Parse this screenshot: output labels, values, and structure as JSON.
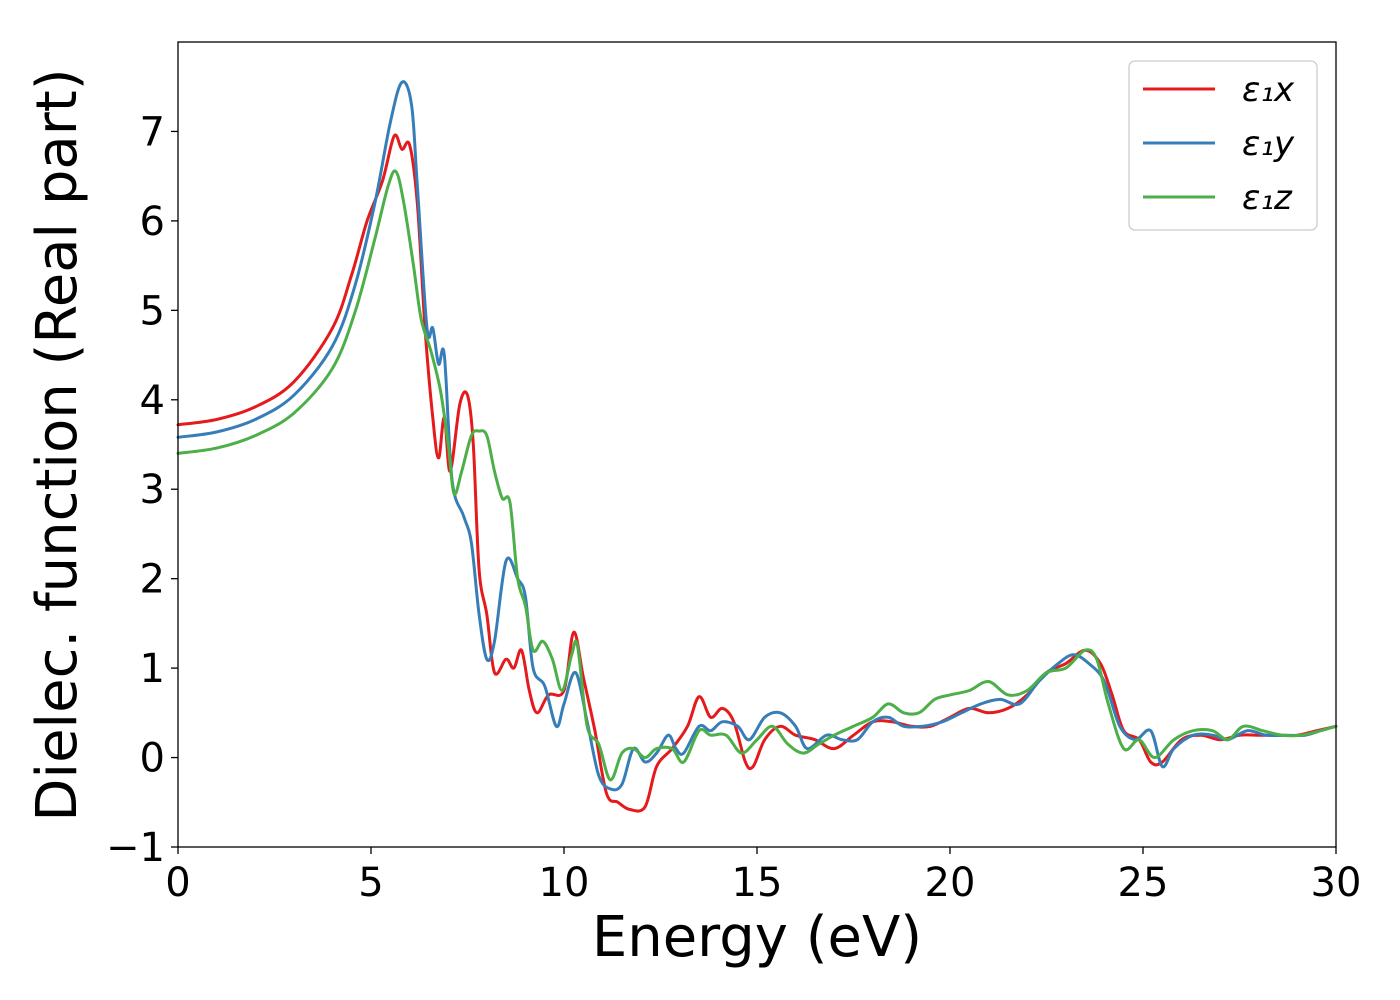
{
  "chart_data": {
    "type": "line",
    "title": "",
    "xlabel": "Energy (eV)",
    "ylabel": "Dielec. function (Real part)",
    "xlim": [
      0,
      30
    ],
    "ylim": [
      -1,
      8
    ],
    "xticks": [
      0,
      5,
      10,
      15,
      20,
      25,
      30
    ],
    "xtick_labels": [
      "0",
      "5",
      "10",
      "15",
      "20",
      "25",
      "30"
    ],
    "yticks": [
      -1,
      0,
      1,
      2,
      3,
      4,
      5,
      6,
      7
    ],
    "ytick_labels": [
      "−1",
      "0",
      "1",
      "2",
      "3",
      "4",
      "5",
      "6",
      "7"
    ],
    "grid": false,
    "legend_position": "top-right",
    "series": [
      {
        "name": "ε₁x",
        "color": "#e41a1c",
        "points": [
          [
            0,
            3.72
          ],
          [
            1,
            3.78
          ],
          [
            2,
            3.92
          ],
          [
            3,
            4.2
          ],
          [
            4,
            4.8
          ],
          [
            4.5,
            5.4
          ],
          [
            4.9,
            6.0
          ],
          [
            5.3,
            6.45
          ],
          [
            5.6,
            6.95
          ],
          [
            5.8,
            6.8
          ],
          [
            6.0,
            6.85
          ],
          [
            6.2,
            6.2
          ],
          [
            6.4,
            4.8
          ],
          [
            6.6,
            3.8
          ],
          [
            6.75,
            3.35
          ],
          [
            6.9,
            3.8
          ],
          [
            7.05,
            3.2
          ],
          [
            7.3,
            3.95
          ],
          [
            7.5,
            4.05
          ],
          [
            7.65,
            3.5
          ],
          [
            7.8,
            2.1
          ],
          [
            8.0,
            1.6
          ],
          [
            8.2,
            0.95
          ],
          [
            8.5,
            1.1
          ],
          [
            8.7,
            1.0
          ],
          [
            8.9,
            1.2
          ],
          [
            9.1,
            0.75
          ],
          [
            9.3,
            0.5
          ],
          [
            9.6,
            0.7
          ],
          [
            10.0,
            0.75
          ],
          [
            10.25,
            1.4
          ],
          [
            10.5,
            0.9
          ],
          [
            10.8,
            0.3
          ],
          [
            11.1,
            -0.4
          ],
          [
            11.4,
            -0.5
          ],
          [
            11.7,
            -0.58
          ],
          [
            12.1,
            -0.55
          ],
          [
            12.4,
            -0.1
          ],
          [
            12.8,
            0.1
          ],
          [
            13.2,
            0.35
          ],
          [
            13.5,
            0.68
          ],
          [
            13.8,
            0.45
          ],
          [
            14.1,
            0.55
          ],
          [
            14.4,
            0.4
          ],
          [
            14.7,
            -0.05
          ],
          [
            14.9,
            -0.1
          ],
          [
            15.2,
            0.2
          ],
          [
            15.6,
            0.35
          ],
          [
            16.0,
            0.25
          ],
          [
            16.5,
            0.2
          ],
          [
            17.0,
            0.1
          ],
          [
            17.5,
            0.25
          ],
          [
            18.0,
            0.4
          ],
          [
            18.5,
            0.4
          ],
          [
            19.0,
            0.35
          ],
          [
            19.5,
            0.35
          ],
          [
            20.0,
            0.45
          ],
          [
            20.5,
            0.55
          ],
          [
            21.0,
            0.5
          ],
          [
            21.5,
            0.55
          ],
          [
            22.0,
            0.7
          ],
          [
            22.5,
            0.95
          ],
          [
            23.0,
            1.05
          ],
          [
            23.5,
            1.2
          ],
          [
            23.9,
            1.05
          ],
          [
            24.2,
            0.7
          ],
          [
            24.5,
            0.3
          ],
          [
            24.9,
            0.2
          ],
          [
            25.2,
            -0.05
          ],
          [
            25.5,
            -0.05
          ],
          [
            26.0,
            0.2
          ],
          [
            26.5,
            0.25
          ],
          [
            27.0,
            0.2
          ],
          [
            27.5,
            0.25
          ],
          [
            28.0,
            0.25
          ],
          [
            28.5,
            0.25
          ],
          [
            29.0,
            0.25
          ],
          [
            29.5,
            0.3
          ],
          [
            30,
            0.35
          ]
        ]
      },
      {
        "name": "ε₁y",
        "color": "#377eb8",
        "points": [
          [
            0,
            3.58
          ],
          [
            1,
            3.64
          ],
          [
            2,
            3.78
          ],
          [
            3,
            4.05
          ],
          [
            4,
            4.6
          ],
          [
            4.6,
            5.3
          ],
          [
            5.1,
            6.2
          ],
          [
            5.5,
            7.1
          ],
          [
            5.8,
            7.55
          ],
          [
            6.05,
            7.3
          ],
          [
            6.2,
            6.4
          ],
          [
            6.45,
            4.8
          ],
          [
            6.6,
            4.8
          ],
          [
            6.75,
            4.4
          ],
          [
            6.9,
            4.5
          ],
          [
            7.1,
            3.1
          ],
          [
            7.4,
            2.7
          ],
          [
            7.6,
            2.4
          ],
          [
            7.8,
            1.6
          ],
          [
            8.0,
            1.1
          ],
          [
            8.2,
            1.3
          ],
          [
            8.5,
            2.2
          ],
          [
            8.8,
            2.0
          ],
          [
            9.0,
            1.8
          ],
          [
            9.2,
            1.0
          ],
          [
            9.5,
            0.8
          ],
          [
            9.8,
            0.35
          ],
          [
            10.0,
            0.6
          ],
          [
            10.3,
            0.95
          ],
          [
            10.6,
            0.4
          ],
          [
            10.9,
            -0.2
          ],
          [
            11.2,
            -0.35
          ],
          [
            11.5,
            -0.3
          ],
          [
            11.8,
            0.1
          ],
          [
            12.1,
            -0.05
          ],
          [
            12.4,
            0.05
          ],
          [
            12.7,
            0.25
          ],
          [
            12.9,
            0.1
          ],
          [
            13.1,
            0.05
          ],
          [
            13.5,
            0.35
          ],
          [
            13.8,
            0.3
          ],
          [
            14.1,
            0.4
          ],
          [
            14.5,
            0.35
          ],
          [
            14.8,
            0.2
          ],
          [
            15.2,
            0.45
          ],
          [
            15.6,
            0.5
          ],
          [
            16.0,
            0.35
          ],
          [
            16.3,
            0.1
          ],
          [
            16.8,
            0.25
          ],
          [
            17.2,
            0.2
          ],
          [
            17.6,
            0.2
          ],
          [
            18.0,
            0.4
          ],
          [
            18.4,
            0.45
          ],
          [
            18.8,
            0.35
          ],
          [
            19.3,
            0.35
          ],
          [
            19.8,
            0.4
          ],
          [
            20.3,
            0.5
          ],
          [
            20.8,
            0.6
          ],
          [
            21.3,
            0.65
          ],
          [
            21.8,
            0.6
          ],
          [
            22.3,
            0.85
          ],
          [
            22.8,
            1.05
          ],
          [
            23.2,
            1.15
          ],
          [
            23.6,
            1.05
          ],
          [
            24.0,
            0.85
          ],
          [
            24.4,
            0.35
          ],
          [
            24.8,
            0.2
          ],
          [
            25.2,
            0.3
          ],
          [
            25.5,
            -0.1
          ],
          [
            25.8,
            0.1
          ],
          [
            26.3,
            0.25
          ],
          [
            26.8,
            0.25
          ],
          [
            27.2,
            0.2
          ],
          [
            27.7,
            0.3
          ],
          [
            28.2,
            0.25
          ],
          [
            28.7,
            0.25
          ],
          [
            29.2,
            0.25
          ],
          [
            29.6,
            0.3
          ],
          [
            30,
            0.35
          ]
        ]
      },
      {
        "name": "ε₁z",
        "color": "#4daf4a",
        "points": [
          [
            0,
            3.4
          ],
          [
            1,
            3.46
          ],
          [
            2,
            3.6
          ],
          [
            3,
            3.85
          ],
          [
            4,
            4.35
          ],
          [
            4.6,
            5.0
          ],
          [
            5.1,
            5.8
          ],
          [
            5.45,
            6.4
          ],
          [
            5.65,
            6.55
          ],
          [
            5.85,
            6.2
          ],
          [
            6.1,
            5.5
          ],
          [
            6.3,
            4.9
          ],
          [
            6.55,
            4.55
          ],
          [
            6.8,
            4.1
          ],
          [
            7.0,
            3.5
          ],
          [
            7.15,
            2.95
          ],
          [
            7.35,
            3.2
          ],
          [
            7.6,
            3.6
          ],
          [
            7.8,
            3.65
          ],
          [
            8.0,
            3.6
          ],
          [
            8.2,
            3.2
          ],
          [
            8.4,
            2.9
          ],
          [
            8.6,
            2.85
          ],
          [
            8.8,
            2.0
          ],
          [
            9.0,
            1.7
          ],
          [
            9.2,
            1.2
          ],
          [
            9.45,
            1.3
          ],
          [
            9.7,
            1.1
          ],
          [
            9.95,
            0.75
          ],
          [
            10.2,
            1.15
          ],
          [
            10.35,
            1.25
          ],
          [
            10.6,
            0.35
          ],
          [
            10.9,
            0.15
          ],
          [
            11.2,
            -0.25
          ],
          [
            11.5,
            0.05
          ],
          [
            11.8,
            0.1
          ],
          [
            12.1,
            0.0
          ],
          [
            12.4,
            0.1
          ],
          [
            12.8,
            0.1
          ],
          [
            13.1,
            -0.05
          ],
          [
            13.5,
            0.3
          ],
          [
            13.8,
            0.25
          ],
          [
            14.2,
            0.25
          ],
          [
            14.6,
            0.05
          ],
          [
            15.0,
            0.2
          ],
          [
            15.4,
            0.35
          ],
          [
            15.8,
            0.15
          ],
          [
            16.2,
            0.05
          ],
          [
            16.6,
            0.15
          ],
          [
            17.0,
            0.25
          ],
          [
            17.5,
            0.35
          ],
          [
            18.0,
            0.45
          ],
          [
            18.4,
            0.6
          ],
          [
            18.8,
            0.5
          ],
          [
            19.2,
            0.5
          ],
          [
            19.6,
            0.65
          ],
          [
            20.0,
            0.7
          ],
          [
            20.5,
            0.75
          ],
          [
            21.0,
            0.85
          ],
          [
            21.5,
            0.7
          ],
          [
            22.0,
            0.75
          ],
          [
            22.5,
            0.95
          ],
          [
            23.0,
            1.0
          ],
          [
            23.5,
            1.2
          ],
          [
            23.8,
            1.1
          ],
          [
            24.1,
            0.6
          ],
          [
            24.5,
            0.1
          ],
          [
            24.9,
            0.2
          ],
          [
            25.3,
            0.0
          ],
          [
            25.8,
            0.2
          ],
          [
            26.3,
            0.3
          ],
          [
            26.8,
            0.3
          ],
          [
            27.2,
            0.2
          ],
          [
            27.6,
            0.35
          ],
          [
            28.1,
            0.3
          ],
          [
            28.6,
            0.25
          ],
          [
            29.1,
            0.25
          ],
          [
            29.6,
            0.3
          ],
          [
            30,
            0.35
          ]
        ]
      }
    ]
  }
}
